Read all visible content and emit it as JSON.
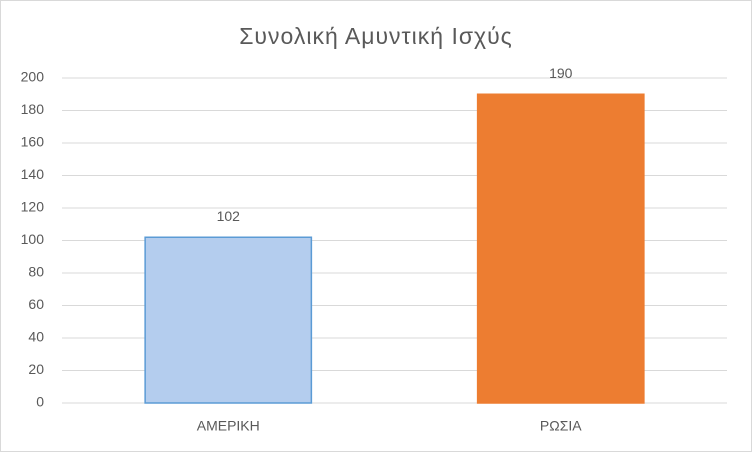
{
  "chart_data": {
    "type": "bar",
    "title": "Συνολική Αμυντική Ισχύς",
    "categories": [
      "ΑΜΕΡΙΚΗ",
      "ΡΩΣΙΑ"
    ],
    "values": [
      102,
      190
    ],
    "colors": [
      "#b4cdee",
      "#ed7d31"
    ],
    "edge_colors": [
      "#5b9bd5",
      "#ed7d31"
    ],
    "ylim": [
      0,
      200
    ],
    "yticks": [
      0,
      20,
      40,
      60,
      80,
      100,
      120,
      140,
      160,
      180,
      200
    ],
    "grid": true
  }
}
